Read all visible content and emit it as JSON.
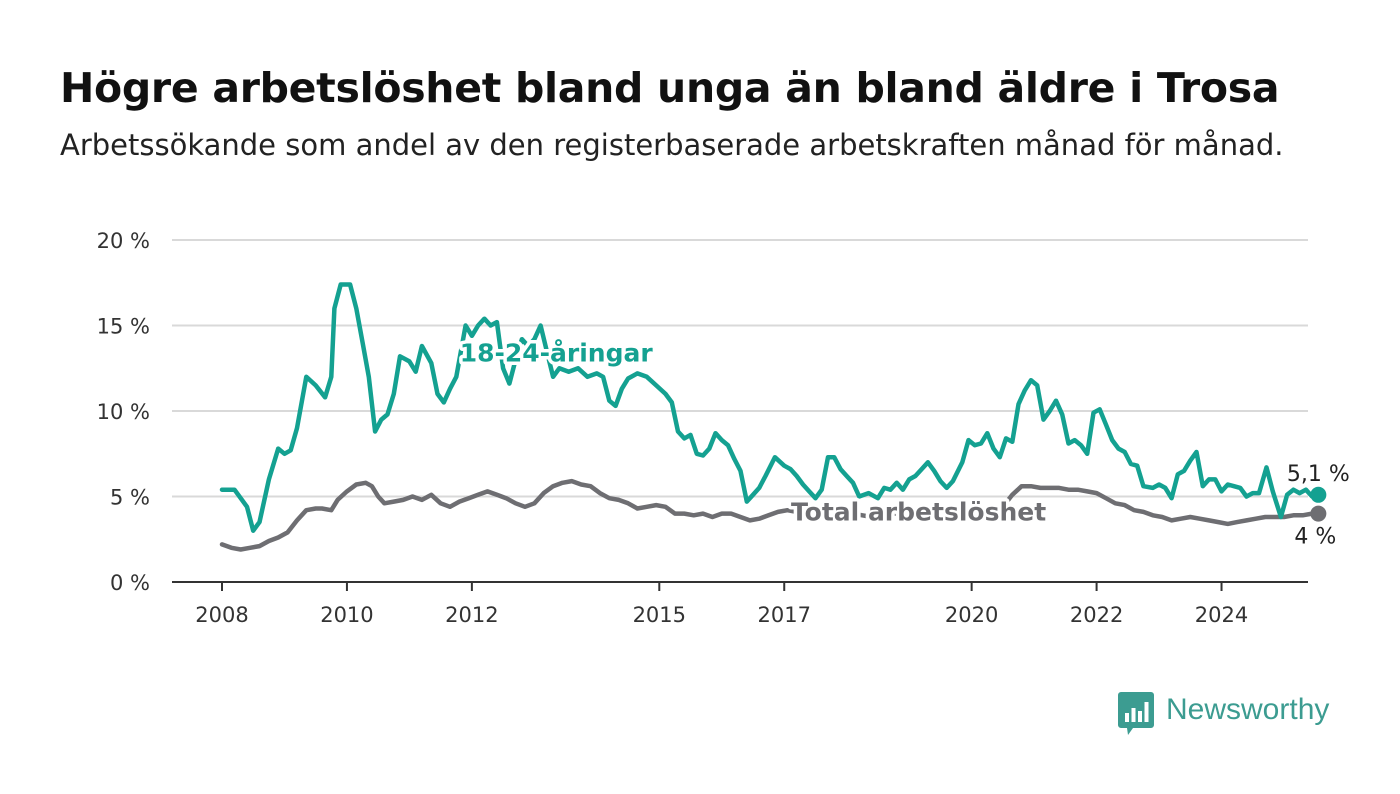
{
  "header": {
    "title": "Högre arbetslöshet bland unga än bland äldre i Trosa",
    "subtitle": "Arbetssökande som andel av den registerbaserade arbetskraften månad för månad."
  },
  "brand": {
    "name": "Newsworthy",
    "icon": "bar-chart-speech-bubble-icon",
    "color": "#3c9c91"
  },
  "chart_data": {
    "type": "line",
    "title": "Högre arbetslöshet bland unga än bland äldre i Trosa",
    "subtitle": "Arbetssökande som andel av den registerbaserade arbetskraften månad för månad.",
    "x_unit": "year (decimal)",
    "xlim": [
      2008,
      2025
    ],
    "ylim": [
      0,
      20
    ],
    "grid": true,
    "y_ticks": [
      0,
      5,
      10,
      15,
      20
    ],
    "y_tick_labels": [
      "0 %",
      "5 %",
      "10 %",
      "15 %",
      "20 %"
    ],
    "x_ticks": [
      2008,
      2010,
      2012,
      2015,
      2017,
      2020,
      2022,
      2024
    ],
    "x_tick_labels": [
      "2008",
      "2010",
      "2012",
      "2015",
      "2017",
      "2020",
      "2022",
      "2024"
    ],
    "series": [
      {
        "name": "18-24-åringar",
        "color": "#14a191",
        "end_label": "5,1 %",
        "points": [
          [
            2008.0,
            5.4
          ],
          [
            2008.2,
            5.4
          ],
          [
            2008.4,
            4.4
          ],
          [
            2008.5,
            3.0
          ],
          [
            2008.6,
            3.5
          ],
          [
            2008.75,
            6.0
          ],
          [
            2008.9,
            7.8
          ],
          [
            2009.0,
            7.5
          ],
          [
            2009.1,
            7.7
          ],
          [
            2009.2,
            9.0
          ],
          [
            2009.35,
            12.0
          ],
          [
            2009.5,
            11.5
          ],
          [
            2009.65,
            10.8
          ],
          [
            2009.75,
            12.0
          ],
          [
            2009.8,
            16.0
          ],
          [
            2009.9,
            17.4
          ],
          [
            2010.05,
            17.4
          ],
          [
            2010.15,
            16.0
          ],
          [
            2010.25,
            14.0
          ],
          [
            2010.35,
            12.0
          ],
          [
            2010.45,
            8.8
          ],
          [
            2010.55,
            9.5
          ],
          [
            2010.65,
            9.8
          ],
          [
            2010.75,
            11.0
          ],
          [
            2010.85,
            13.2
          ],
          [
            2011.0,
            12.9
          ],
          [
            2011.1,
            12.3
          ],
          [
            2011.2,
            13.8
          ],
          [
            2011.35,
            12.8
          ],
          [
            2011.45,
            11.0
          ],
          [
            2011.55,
            10.5
          ],
          [
            2011.65,
            11.3
          ],
          [
            2011.75,
            12.0
          ],
          [
            2011.9,
            15.0
          ],
          [
            2012.0,
            14.4
          ],
          [
            2012.1,
            15.0
          ],
          [
            2012.2,
            15.4
          ],
          [
            2012.3,
            15.0
          ],
          [
            2012.4,
            15.2
          ],
          [
            2012.5,
            12.5
          ],
          [
            2012.6,
            11.6
          ],
          [
            2012.7,
            13.0
          ],
          [
            2012.8,
            14.2
          ],
          [
            2012.9,
            13.8
          ],
          [
            2013.0,
            14.2
          ],
          [
            2013.1,
            15.0
          ],
          [
            2013.2,
            13.5
          ],
          [
            2013.3,
            12.0
          ],
          [
            2013.4,
            12.5
          ],
          [
            2013.55,
            12.3
          ],
          [
            2013.7,
            12.5
          ],
          [
            2013.85,
            12.0
          ],
          [
            2014.0,
            12.2
          ],
          [
            2014.1,
            12.0
          ],
          [
            2014.2,
            10.6
          ],
          [
            2014.3,
            10.3
          ],
          [
            2014.4,
            11.3
          ],
          [
            2014.5,
            11.9
          ],
          [
            2014.65,
            12.2
          ],
          [
            2014.8,
            12.0
          ],
          [
            2014.95,
            11.5
          ],
          [
            2015.1,
            11.0
          ],
          [
            2015.2,
            10.5
          ],
          [
            2015.3,
            8.8
          ],
          [
            2015.4,
            8.4
          ],
          [
            2015.5,
            8.6
          ],
          [
            2015.6,
            7.5
          ],
          [
            2015.7,
            7.4
          ],
          [
            2015.8,
            7.8
          ],
          [
            2015.9,
            8.7
          ],
          [
            2016.0,
            8.3
          ],
          [
            2016.1,
            8.0
          ],
          [
            2016.2,
            7.2
          ],
          [
            2016.3,
            6.5
          ],
          [
            2016.4,
            4.7
          ],
          [
            2016.5,
            5.1
          ],
          [
            2016.6,
            5.5
          ],
          [
            2016.7,
            6.2
          ],
          [
            2016.85,
            7.3
          ],
          [
            2017.0,
            6.8
          ],
          [
            2017.1,
            6.6
          ],
          [
            2017.2,
            6.2
          ],
          [
            2017.3,
            5.7
          ],
          [
            2017.4,
            5.3
          ],
          [
            2017.5,
            4.9
          ],
          [
            2017.6,
            5.4
          ],
          [
            2017.7,
            7.3
          ],
          [
            2017.8,
            7.3
          ],
          [
            2017.9,
            6.6
          ],
          [
            2018.0,
            6.2
          ],
          [
            2018.1,
            5.8
          ],
          [
            2018.2,
            5.0
          ],
          [
            2018.35,
            5.2
          ],
          [
            2018.5,
            4.9
          ],
          [
            2018.6,
            5.5
          ],
          [
            2018.7,
            5.4
          ],
          [
            2018.8,
            5.8
          ],
          [
            2018.9,
            5.4
          ],
          [
            2019.0,
            6.0
          ],
          [
            2019.1,
            6.2
          ],
          [
            2019.2,
            6.6
          ],
          [
            2019.3,
            7.0
          ],
          [
            2019.4,
            6.5
          ],
          [
            2019.5,
            5.9
          ],
          [
            2019.6,
            5.5
          ],
          [
            2019.7,
            5.9
          ],
          [
            2019.85,
            7.0
          ],
          [
            2019.95,
            8.3
          ],
          [
            2020.05,
            8.0
          ],
          [
            2020.15,
            8.1
          ],
          [
            2020.25,
            8.7
          ],
          [
            2020.35,
            7.8
          ],
          [
            2020.45,
            7.3
          ],
          [
            2020.55,
            8.4
          ],
          [
            2020.65,
            8.2
          ],
          [
            2020.75,
            10.4
          ],
          [
            2020.85,
            11.2
          ],
          [
            2020.95,
            11.8
          ],
          [
            2021.05,
            11.5
          ],
          [
            2021.15,
            9.5
          ],
          [
            2021.25,
            10.0
          ],
          [
            2021.35,
            10.6
          ],
          [
            2021.45,
            9.8
          ],
          [
            2021.55,
            8.1
          ],
          [
            2021.65,
            8.3
          ],
          [
            2021.75,
            8.0
          ],
          [
            2021.85,
            7.5
          ],
          [
            2021.95,
            9.9
          ],
          [
            2022.05,
            10.1
          ],
          [
            2022.15,
            9.2
          ],
          [
            2022.25,
            8.3
          ],
          [
            2022.35,
            7.8
          ],
          [
            2022.45,
            7.6
          ],
          [
            2022.55,
            6.9
          ],
          [
            2022.65,
            6.8
          ],
          [
            2022.75,
            5.6
          ],
          [
            2022.9,
            5.5
          ],
          [
            2023.0,
            5.7
          ],
          [
            2023.1,
            5.5
          ],
          [
            2023.2,
            4.9
          ],
          [
            2023.3,
            6.3
          ],
          [
            2023.4,
            6.5
          ],
          [
            2023.5,
            7.1
          ],
          [
            2023.6,
            7.6
          ],
          [
            2023.7,
            5.6
          ],
          [
            2023.8,
            6.0
          ],
          [
            2023.9,
            6.0
          ],
          [
            2024.0,
            5.3
          ],
          [
            2024.1,
            5.7
          ],
          [
            2024.2,
            5.6
          ],
          [
            2024.3,
            5.5
          ],
          [
            2024.4,
            5.0
          ],
          [
            2024.5,
            5.2
          ],
          [
            2024.6,
            5.2
          ],
          [
            2024.72,
            6.7
          ],
          [
            2024.82,
            5.3
          ],
          [
            2024.95,
            3.8
          ],
          [
            2025.05,
            5.1
          ],
          [
            2025.15,
            5.4
          ],
          [
            2025.25,
            5.2
          ],
          [
            2025.35,
            5.4
          ],
          [
            2025.45,
            5.0
          ],
          [
            2025.55,
            5.1
          ]
        ]
      },
      {
        "name": "Total arbetslöshet",
        "color": "#6e6e72",
        "end_label": "4 %",
        "points": [
          [
            2008.0,
            2.2
          ],
          [
            2008.15,
            2.0
          ],
          [
            2008.3,
            1.9
          ],
          [
            2008.45,
            2.0
          ],
          [
            2008.6,
            2.1
          ],
          [
            2008.75,
            2.4
          ],
          [
            2008.9,
            2.6
          ],
          [
            2009.05,
            2.9
          ],
          [
            2009.2,
            3.6
          ],
          [
            2009.35,
            4.2
          ],
          [
            2009.5,
            4.3
          ],
          [
            2009.6,
            4.3
          ],
          [
            2009.75,
            4.2
          ],
          [
            2009.85,
            4.8
          ],
          [
            2010.0,
            5.3
          ],
          [
            2010.15,
            5.7
          ],
          [
            2010.3,
            5.8
          ],
          [
            2010.4,
            5.6
          ],
          [
            2010.5,
            5.0
          ],
          [
            2010.6,
            4.6
          ],
          [
            2010.75,
            4.7
          ],
          [
            2010.9,
            4.8
          ],
          [
            2011.05,
            5.0
          ],
          [
            2011.2,
            4.8
          ],
          [
            2011.35,
            5.1
          ],
          [
            2011.5,
            4.6
          ],
          [
            2011.65,
            4.4
          ],
          [
            2011.8,
            4.7
          ],
          [
            2011.95,
            4.9
          ],
          [
            2012.1,
            5.1
          ],
          [
            2012.25,
            5.3
          ],
          [
            2012.4,
            5.1
          ],
          [
            2012.55,
            4.9
          ],
          [
            2012.7,
            4.6
          ],
          [
            2012.85,
            4.4
          ],
          [
            2013.0,
            4.6
          ],
          [
            2013.15,
            5.2
          ],
          [
            2013.3,
            5.6
          ],
          [
            2013.45,
            5.8
          ],
          [
            2013.6,
            5.9
          ],
          [
            2013.75,
            5.7
          ],
          [
            2013.9,
            5.6
          ],
          [
            2014.05,
            5.2
          ],
          [
            2014.2,
            4.9
          ],
          [
            2014.35,
            4.8
          ],
          [
            2014.5,
            4.6
          ],
          [
            2014.65,
            4.3
          ],
          [
            2014.8,
            4.4
          ],
          [
            2014.95,
            4.5
          ],
          [
            2015.1,
            4.4
          ],
          [
            2015.25,
            4.0
          ],
          [
            2015.4,
            4.0
          ],
          [
            2015.55,
            3.9
          ],
          [
            2015.7,
            4.0
          ],
          [
            2015.85,
            3.8
          ],
          [
            2016.0,
            4.0
          ],
          [
            2016.15,
            4.0
          ],
          [
            2016.3,
            3.8
          ],
          [
            2016.45,
            3.6
          ],
          [
            2016.6,
            3.7
          ],
          [
            2016.75,
            3.9
          ],
          [
            2016.9,
            4.1
          ],
          [
            2017.05,
            4.2
          ],
          [
            2017.2,
            4.1
          ],
          [
            2017.35,
            4.0
          ],
          [
            2017.5,
            4.0
          ],
          [
            2017.65,
            4.2
          ],
          [
            2017.8,
            4.4
          ],
          [
            2017.95,
            4.2
          ],
          [
            2018.1,
            4.0
          ],
          [
            2018.25,
            3.9
          ],
          [
            2018.4,
            3.8
          ],
          [
            2018.55,
            3.9
          ],
          [
            2018.7,
            4.0
          ],
          [
            2018.85,
            4.0
          ],
          [
            2019.0,
            3.9
          ],
          [
            2019.15,
            3.8
          ],
          [
            2019.3,
            3.9
          ],
          [
            2019.45,
            4.0
          ],
          [
            2019.6,
            3.9
          ],
          [
            2019.75,
            3.8
          ],
          [
            2019.9,
            4.0
          ],
          [
            2020.05,
            4.2
          ],
          [
            2020.2,
            4.3
          ],
          [
            2020.35,
            4.2
          ],
          [
            2020.5,
            4.4
          ],
          [
            2020.65,
            5.1
          ],
          [
            2020.8,
            5.6
          ],
          [
            2020.95,
            5.6
          ],
          [
            2021.1,
            5.5
          ],
          [
            2021.25,
            5.5
          ],
          [
            2021.4,
            5.5
          ],
          [
            2021.55,
            5.4
          ],
          [
            2021.7,
            5.4
          ],
          [
            2021.85,
            5.3
          ],
          [
            2022.0,
            5.2
          ],
          [
            2022.15,
            4.9
          ],
          [
            2022.3,
            4.6
          ],
          [
            2022.45,
            4.5
          ],
          [
            2022.6,
            4.2
          ],
          [
            2022.75,
            4.1
          ],
          [
            2022.9,
            3.9
          ],
          [
            2023.05,
            3.8
          ],
          [
            2023.2,
            3.6
          ],
          [
            2023.35,
            3.7
          ],
          [
            2023.5,
            3.8
          ],
          [
            2023.65,
            3.7
          ],
          [
            2023.8,
            3.6
          ],
          [
            2023.95,
            3.5
          ],
          [
            2024.1,
            3.4
          ],
          [
            2024.25,
            3.5
          ],
          [
            2024.4,
            3.6
          ],
          [
            2024.55,
            3.7
          ],
          [
            2024.7,
            3.8
          ],
          [
            2024.85,
            3.8
          ],
          [
            2025.0,
            3.8
          ],
          [
            2025.15,
            3.9
          ],
          [
            2025.3,
            3.9
          ],
          [
            2025.45,
            4.0
          ],
          [
            2025.55,
            4.0
          ]
        ]
      }
    ],
    "annotations": [
      {
        "text": "18-24-åringar",
        "x": 2013.35,
        "y": 12.9,
        "series": "18-24-åringar"
      },
      {
        "text": "Total arbetslöshet",
        "x": 2019.15,
        "y": 3.6,
        "series": "Total arbetslöshet"
      }
    ]
  }
}
